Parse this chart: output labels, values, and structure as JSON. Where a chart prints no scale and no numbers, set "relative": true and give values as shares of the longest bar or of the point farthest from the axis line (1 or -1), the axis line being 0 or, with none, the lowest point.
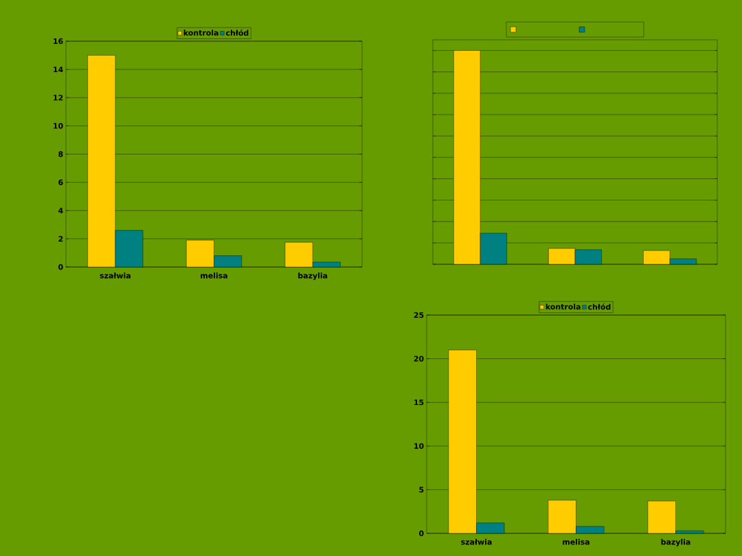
{
  "chart_data": [
    {
      "type": "bar",
      "categories": [
        "szałwia",
        "melisa",
        "bazylia"
      ],
      "ylim": [
        0,
        16
      ],
      "yticks": [
        0,
        2,
        4,
        6,
        8,
        10,
        12,
        14,
        16
      ],
      "grid": "y",
      "legend": "top",
      "series": [
        {
          "name": "kontrola",
          "color": "#ffcc00",
          "values": [
            15,
            1.9,
            1.75
          ]
        },
        {
          "name": "chłód",
          "color": "#008080",
          "values": [
            2.6,
            0.8,
            0.35
          ]
        }
      ]
    },
    {
      "type": "bar",
      "categories": [
        null,
        null,
        null
      ],
      "relative": true,
      "grid": "y",
      "legend": "top",
      "series": [
        {
          "color": "#ffcc00",
          "values": [
            1,
            0.074,
            0.064
          ]
        },
        {
          "color": "#008080",
          "values": [
            0.145,
            0.068,
            0.026
          ]
        }
      ]
    },
    {
      "type": "bar",
      "categories": [
        "szałwia",
        "melisa",
        "bazylia"
      ],
      "ylim": [
        0,
        25
      ],
      "yticks": [
        0,
        5,
        10,
        15,
        20,
        25
      ],
      "grid": "y",
      "legend": "top",
      "series": [
        {
          "name": "kontrola",
          "color": "#ffcc00",
          "values": [
            21,
            3.8,
            3.7
          ]
        },
        {
          "name": "chłód",
          "color": "#008080",
          "values": [
            1.2,
            0.8,
            0.3
          ]
        }
      ]
    }
  ]
}
